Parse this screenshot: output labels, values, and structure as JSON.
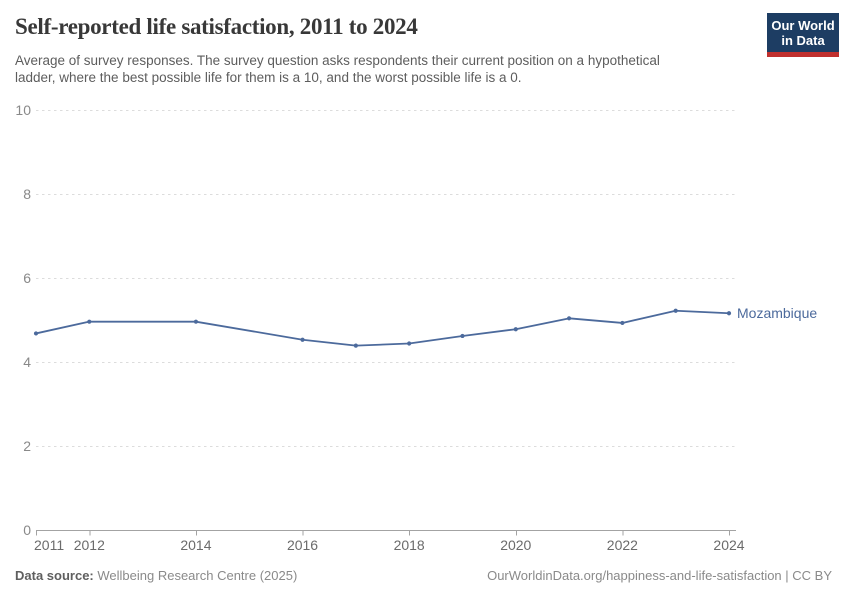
{
  "header": {
    "title": "Self-reported life satisfaction, 2011 to 2024",
    "subtitle_line1": "Average of survey responses. The survey question asks respondents their current position on a hypothetical",
    "subtitle_line2": "ladder, where the best possible life for them is a 10, and the worst possible life is a 0.",
    "logo": {
      "line1": "Our World",
      "line2": "in Data",
      "bg_color": "#1d3d63",
      "accent_color": "#c0302e"
    }
  },
  "chart_data": {
    "type": "line",
    "title": "Self-reported life satisfaction, 2011 to 2024",
    "xlabel": "",
    "ylabel": "",
    "ylim": [
      0,
      10
    ],
    "xlim": [
      2011,
      2024
    ],
    "yticks": [
      0,
      2,
      4,
      6,
      8,
      10
    ],
    "xticks": [
      2011,
      2012,
      2014,
      2016,
      2018,
      2020,
      2022,
      2024
    ],
    "grid": "horizontal-dashed",
    "gridline_color": "#dcdcdc",
    "axis_color": "#a3a3a3",
    "legend_position": "end-of-line-label",
    "missing_years": [
      2013,
      2015
    ],
    "series": [
      {
        "name": "Mozambique",
        "color": "#4c6a9c",
        "x": [
          2011,
          2012,
          2014,
          2016,
          2017,
          2018,
          2019,
          2020,
          2021,
          2022,
          2023,
          2024
        ],
        "y": [
          4.68,
          4.96,
          4.96,
          4.53,
          4.39,
          4.44,
          4.62,
          4.78,
          5.04,
          4.93,
          5.22,
          5.16
        ]
      }
    ]
  },
  "footer": {
    "datasource_label": "Data source:",
    "datasource_value": "Wellbeing Research Centre (2025)",
    "link": "OurWorldinData.org/happiness-and-life-satisfaction | CC BY"
  }
}
